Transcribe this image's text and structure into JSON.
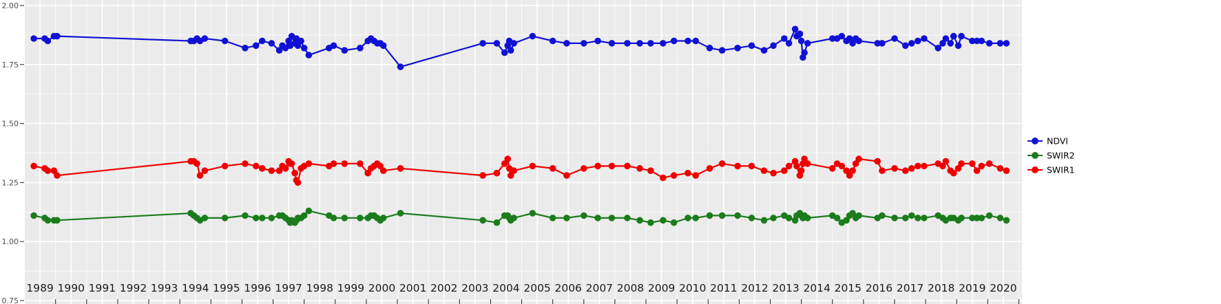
{
  "chart_data": {
    "type": "scatter",
    "title": "",
    "xlabel": "",
    "ylabel": "",
    "panel_bg": "#EBEBEB",
    "grid_color": "#FFFFFF",
    "tick_color": "#333333",
    "x_tick_label_color": "#1a1a1a",
    "y_tick_label_color": "#4d4d4d",
    "xlim": [
      1988.51,
      2020.6
    ],
    "ylim": [
      0.75,
      2.0
    ],
    "y_ticks": [
      {
        "value": 2.0,
        "label": "2.00"
      },
      {
        "value": 1.75,
        "label": "1.75"
      },
      {
        "value": 1.5,
        "label": "1.50"
      },
      {
        "value": 1.25,
        "label": "1.25"
      },
      {
        "value": 1.0,
        "label": "1.00"
      },
      {
        "value": 0.75,
        "label": "0.75"
      }
    ],
    "x_ticks": [
      1989,
      1990,
      1991,
      1992,
      1993,
      1994,
      1995,
      1996,
      1997,
      1998,
      1999,
      2000,
      2001,
      2002,
      2003,
      2004,
      2005,
      2006,
      2007,
      2008,
      2009,
      2010,
      2011,
      2012,
      2013,
      2014,
      2015,
      2016,
      2017,
      2018,
      2019,
      2020
    ],
    "legend": {
      "position": "right",
      "items": [
        "NDVI",
        "SWIR2",
        "SWIR1"
      ]
    },
    "x": [
      1988.8,
      1989.15,
      1989.25,
      1989.45,
      1989.55,
      1993.85,
      1993.95,
      1994.05,
      1994.15,
      1994.3,
      1994.95,
      1995.6,
      1995.95,
      1996.15,
      1996.45,
      1996.7,
      1996.8,
      1996.9,
      1997.0,
      1997.05,
      1997.1,
      1997.2,
      1997.25,
      1997.3,
      1997.4,
      1997.5,
      1997.65,
      1998.3,
      1998.45,
      1998.8,
      1999.3,
      1999.55,
      1999.65,
      1999.75,
      1999.85,
      1999.95,
      2000.05,
      2000.6,
      2003.25,
      2003.7,
      2003.95,
      2004.05,
      2004.1,
      2004.15,
      2004.25,
      2004.85,
      2005.5,
      2005.95,
      2006.5,
      2006.95,
      2007.4,
      2007.9,
      2008.3,
      2008.65,
      2009.05,
      2009.4,
      2009.85,
      2010.1,
      2010.55,
      2010.95,
      2011.45,
      2011.9,
      2012.3,
      2012.6,
      2012.95,
      2013.1,
      2013.3,
      2013.35,
      2013.45,
      2013.5,
      2013.55,
      2013.6,
      2013.7,
      2014.5,
      2014.65,
      2014.8,
      2014.95,
      2015.05,
      2015.15,
      2015.25,
      2015.35,
      2015.95,
      2016.1,
      2016.5,
      2016.85,
      2017.05,
      2017.25,
      2017.45,
      2017.9,
      2018.05,
      2018.15,
      2018.3,
      2018.4,
      2018.55,
      2018.65,
      2019.0,
      2019.15,
      2019.3,
      2019.55,
      2019.9,
      2020.1
    ],
    "series": [
      {
        "name": "NDVI",
        "color": "#1111D4",
        "values": [
          1.86,
          1.86,
          1.85,
          1.87,
          1.87,
          1.85,
          1.85,
          1.86,
          1.85,
          1.86,
          1.85,
          1.82,
          1.83,
          1.85,
          1.84,
          1.81,
          1.83,
          1.82,
          1.85,
          1.83,
          1.87,
          1.84,
          1.86,
          1.83,
          1.85,
          1.82,
          1.79,
          1.82,
          1.83,
          1.81,
          1.82,
          1.85,
          1.86,
          1.85,
          1.84,
          1.84,
          1.83,
          1.74,
          1.84,
          1.84,
          1.8,
          1.83,
          1.85,
          1.81,
          1.84,
          1.87,
          1.85,
          1.84,
          1.84,
          1.85,
          1.84,
          1.84,
          1.84,
          1.84,
          1.84,
          1.85,
          1.85,
          1.85,
          1.82,
          1.81,
          1.82,
          1.83,
          1.81,
          1.83,
          1.86,
          1.84,
          1.9,
          1.87,
          1.88,
          1.85,
          1.78,
          1.8,
          1.84,
          1.86,
          1.86,
          1.87,
          1.85,
          1.86,
          1.84,
          1.86,
          1.85,
          1.84,
          1.84,
          1.86,
          1.83,
          1.84,
          1.85,
          1.86,
          1.82,
          1.84,
          1.86,
          1.84,
          1.87,
          1.83,
          1.87,
          1.85,
          1.85,
          1.85,
          1.84,
          1.84,
          1.84
        ]
      },
      {
        "name": "SWIR2",
        "color": "#1B7C1B",
        "values": [
          1.11,
          1.1,
          1.09,
          1.09,
          1.09,
          1.12,
          1.11,
          1.1,
          1.09,
          1.1,
          1.1,
          1.11,
          1.1,
          1.1,
          1.1,
          1.11,
          1.11,
          1.1,
          1.09,
          1.08,
          1.09,
          1.08,
          1.09,
          1.1,
          1.1,
          1.11,
          1.13,
          1.11,
          1.1,
          1.1,
          1.1,
          1.1,
          1.11,
          1.11,
          1.1,
          1.09,
          1.1,
          1.12,
          1.09,
          1.08,
          1.11,
          1.11,
          1.1,
          1.09,
          1.1,
          1.12,
          1.1,
          1.1,
          1.11,
          1.1,
          1.1,
          1.1,
          1.09,
          1.08,
          1.09,
          1.08,
          1.1,
          1.1,
          1.11,
          1.11,
          1.11,
          1.1,
          1.09,
          1.1,
          1.11,
          1.1,
          1.09,
          1.11,
          1.12,
          1.11,
          1.1,
          1.11,
          1.1,
          1.11,
          1.1,
          1.08,
          1.09,
          1.11,
          1.12,
          1.1,
          1.11,
          1.1,
          1.11,
          1.1,
          1.1,
          1.11,
          1.1,
          1.1,
          1.11,
          1.1,
          1.09,
          1.1,
          1.1,
          1.09,
          1.1,
          1.1,
          1.1,
          1.1,
          1.11,
          1.1,
          1.09
        ]
      },
      {
        "name": "SWIR1",
        "color": "#EF0000",
        "values": [
          1.32,
          1.31,
          1.3,
          1.3,
          1.28,
          1.34,
          1.34,
          1.33,
          1.28,
          1.3,
          1.32,
          1.33,
          1.32,
          1.31,
          1.3,
          1.3,
          1.32,
          1.31,
          1.34,
          1.33,
          1.33,
          1.29,
          1.26,
          1.25,
          1.31,
          1.32,
          1.33,
          1.32,
          1.33,
          1.33,
          1.33,
          1.29,
          1.31,
          1.32,
          1.33,
          1.32,
          1.3,
          1.31,
          1.28,
          1.29,
          1.33,
          1.35,
          1.31,
          1.28,
          1.3,
          1.32,
          1.31,
          1.28,
          1.31,
          1.32,
          1.32,
          1.32,
          1.31,
          1.3,
          1.27,
          1.28,
          1.29,
          1.28,
          1.31,
          1.33,
          1.32,
          1.32,
          1.3,
          1.29,
          1.3,
          1.32,
          1.34,
          1.32,
          1.28,
          1.3,
          1.33,
          1.35,
          1.33,
          1.31,
          1.33,
          1.32,
          1.3,
          1.28,
          1.3,
          1.33,
          1.35,
          1.34,
          1.3,
          1.31,
          1.3,
          1.31,
          1.32,
          1.32,
          1.33,
          1.32,
          1.34,
          1.3,
          1.29,
          1.31,
          1.33,
          1.33,
          1.3,
          1.32,
          1.33,
          1.31,
          1.3
        ]
      }
    ]
  }
}
